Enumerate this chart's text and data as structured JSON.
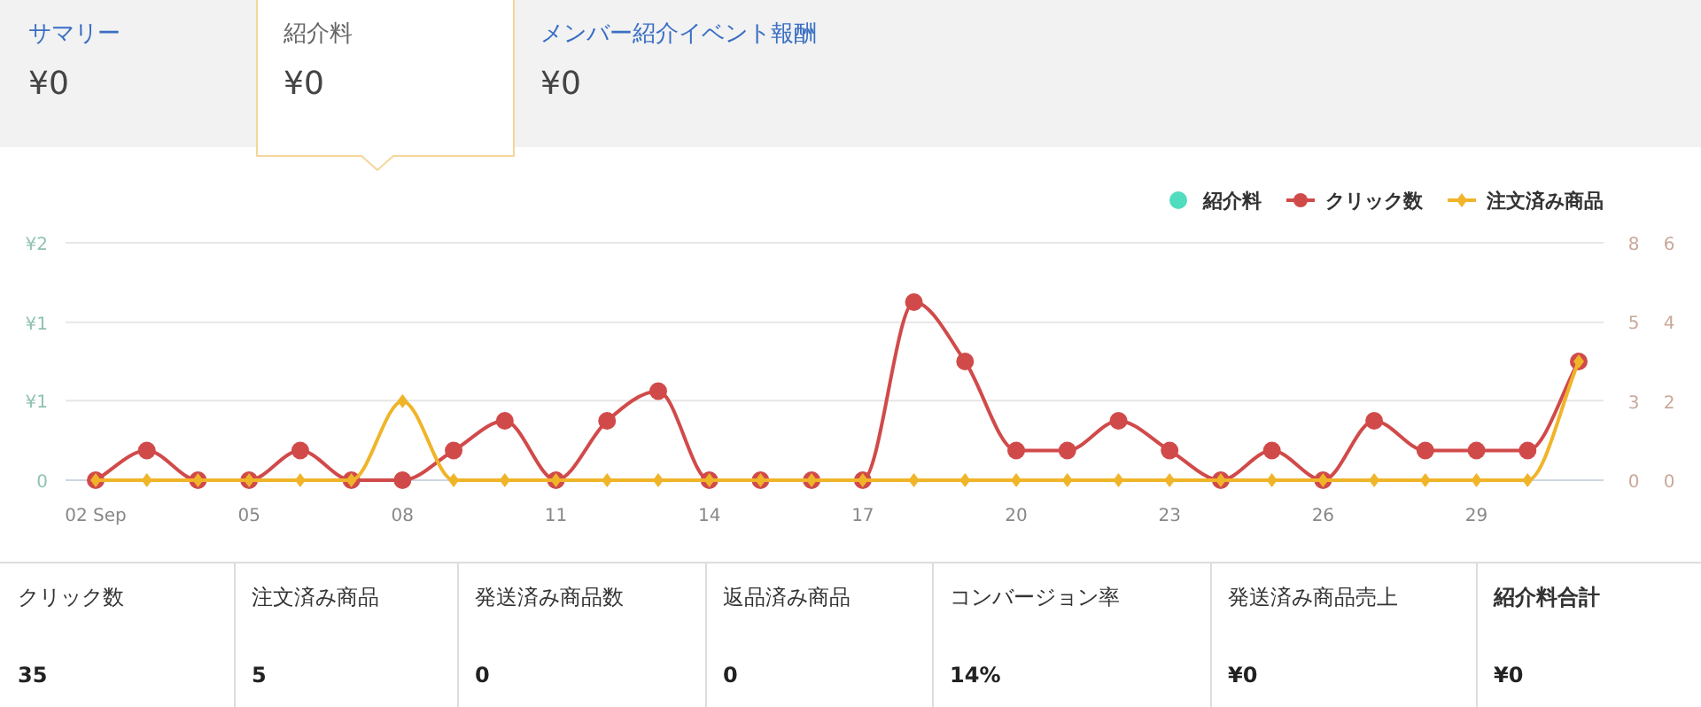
{
  "chart_data": [
    {
      "type": "other",
      "annotations": [
        "サマリー",
        "¥0",
        "紹介料",
        "¥0",
        "メンバー紹介イベント報酬",
        "¥0"
      ]
    },
    {
      "type": "line",
      "categories": [
        "02 Sep",
        null,
        null,
        "05",
        null,
        null,
        "08",
        null,
        null,
        "11",
        null,
        null,
        "14",
        null,
        null,
        "17",
        null,
        null,
        "20",
        null,
        null,
        "23",
        null,
        null,
        "26",
        null,
        null,
        "29",
        null,
        null
      ],
      "ylim": [
        0,
        2
      ],
      "yticks": [
        0,
        {
          "value": 0.67,
          "label": "¥1"
        },
        {
          "value": 1.33,
          "label": "¥1"
        },
        {
          "value": 2,
          "label": "¥2"
        }
      ],
      "y2lim": [
        0,
        8
      ],
      "y2ticks": [
        0,
        {
          "value": 2.67,
          "label": "3"
        },
        {
          "value": 5.33,
          "label": "5"
        },
        8
      ],
      "y3lim": [
        0,
        6
      ],
      "y3ticks": [
        0,
        2,
        4,
        6
      ],
      "grid": "y",
      "legend": "top right",
      "series": [
        {
          "name": "紹介料",
          "color": "#4fdcbf",
          "marker": "circle",
          "values": [
            null,
            null,
            null,
            null,
            null,
            null,
            null,
            null,
            null,
            null,
            null,
            null,
            null,
            null,
            null,
            null,
            null,
            null,
            null,
            null,
            null,
            null,
            null,
            null,
            null,
            null,
            null,
            null,
            null,
            null
          ]
        },
        {
          "name": "クリック数",
          "color": "#d14a4a",
          "marker": "circle",
          "axis": "y2",
          "values": [
            0,
            1,
            0,
            0,
            1,
            0,
            0,
            1,
            2,
            0,
            2,
            3,
            0,
            0,
            0,
            0,
            6,
            4,
            1,
            1,
            2,
            1,
            0,
            1,
            0,
            2,
            1,
            1,
            1,
            4
          ]
        },
        {
          "name": "注文済み商品",
          "color": "#f0b429",
          "marker": "diamond",
          "axis": "y3",
          "values": [
            0,
            0,
            0,
            0,
            0,
            0,
            2,
            0,
            0,
            0,
            0,
            0,
            0,
            0,
            0,
            0,
            0,
            0,
            0,
            0,
            0,
            0,
            0,
            0,
            0,
            0,
            0,
            0,
            0,
            3
          ]
        }
      ]
    },
    {
      "type": "other",
      "annotations": [
        "クリック数",
        "35",
        "注文済み商品",
        "5",
        "発送済み商品数",
        "0",
        "返品済み商品",
        "0",
        "コンバージョン率",
        "14%",
        "発送済み商品売上",
        "¥0",
        "紹介料合計",
        "¥0"
      ]
    }
  ]
}
